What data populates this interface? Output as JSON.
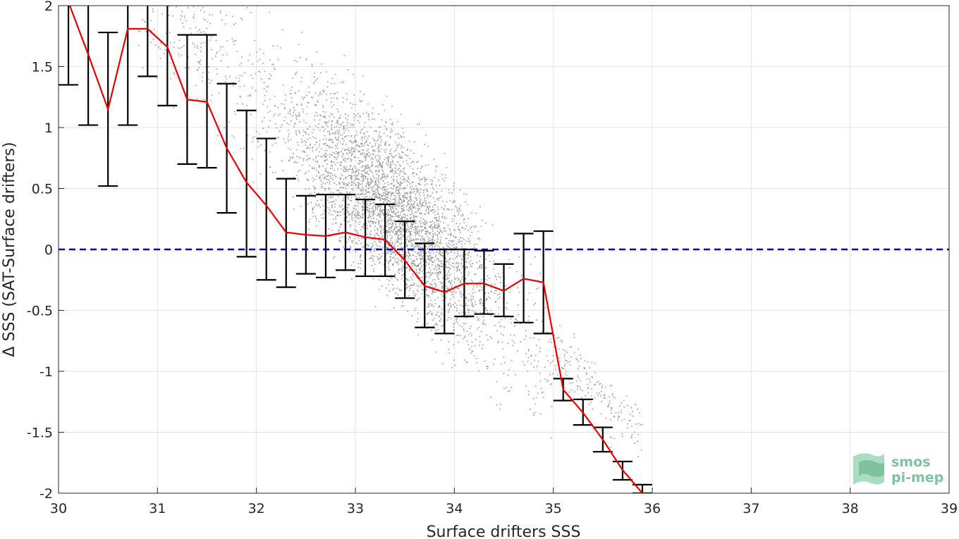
{
  "chart_data": {
    "type": "scatter",
    "xlabel": "Surface drifters SSS",
    "ylabel": "Δ SSS (SAT-Surface drifters)",
    "xlim": [
      30,
      39
    ],
    "ylim": [
      -2,
      2
    ],
    "xticks": [
      "30",
      "31",
      "32",
      "33",
      "34",
      "35",
      "36",
      "37",
      "38",
      "39"
    ],
    "yticks": [
      "2",
      "1.5",
      "1",
      "0.5",
      "0",
      "-0.5",
      "-1",
      "-1.5",
      "-2"
    ],
    "grid": true,
    "reference_line": {
      "y": 0,
      "color": "#0000cc",
      "style": "dashed"
    },
    "scatter_color": "#9a9a9a",
    "mean_color": "#ee0000",
    "errorbar_color": "#000000",
    "binned_series": {
      "x": [
        30.1,
        30.3,
        30.5,
        30.7,
        30.9,
        31.1,
        31.3,
        31.5,
        31.7,
        31.9,
        32.1,
        32.3,
        32.5,
        32.7,
        32.9,
        33.1,
        33.3,
        33.5,
        33.7,
        33.9,
        34.1,
        34.3,
        34.5,
        34.7,
        34.9,
        35.1,
        35.3,
        35.5,
        35.7,
        35.9
      ],
      "mean": [
        2.03,
        1.6,
        1.15,
        1.81,
        1.81,
        1.66,
        1.23,
        1.21,
        0.83,
        0.55,
        0.36,
        0.14,
        0.12,
        0.11,
        0.14,
        0.1,
        0.08,
        -0.09,
        -0.3,
        -0.35,
        -0.28,
        -0.28,
        -0.34,
        -0.24,
        -0.27,
        -1.15,
        -1.34,
        -1.56,
        -1.81,
        -2.0
      ],
      "lower": [
        1.35,
        1.02,
        0.52,
        1.02,
        1.42,
        1.18,
        0.7,
        0.67,
        0.3,
        -0.06,
        -0.25,
        -0.31,
        -0.2,
        -0.23,
        -0.17,
        -0.22,
        -0.22,
        -0.4,
        -0.64,
        -0.69,
        -0.55,
        -0.53,
        -0.55,
        -0.6,
        -0.69,
        -1.24,
        -1.44,
        -1.66,
        -1.89,
        -2.0
      ],
      "upper": [
        2.03,
        2.03,
        1.78,
        2.03,
        2.03,
        2.03,
        1.76,
        1.76,
        1.36,
        1.14,
        0.91,
        0.58,
        0.44,
        0.45,
        0.45,
        0.41,
        0.37,
        0.23,
        0.05,
        0.0,
        0.0,
        -0.01,
        -0.12,
        0.13,
        0.15,
        -1.06,
        -1.23,
        -1.46,
        -1.74,
        -1.93
      ]
    },
    "scatter_model": {
      "center_slope": -0.71,
      "center_intercept": 24.0,
      "spread": 0.32,
      "x_range": [
        30.8,
        35.9
      ]
    }
  },
  "logo": {
    "line1": "smos",
    "line2": "pi-mep"
  }
}
